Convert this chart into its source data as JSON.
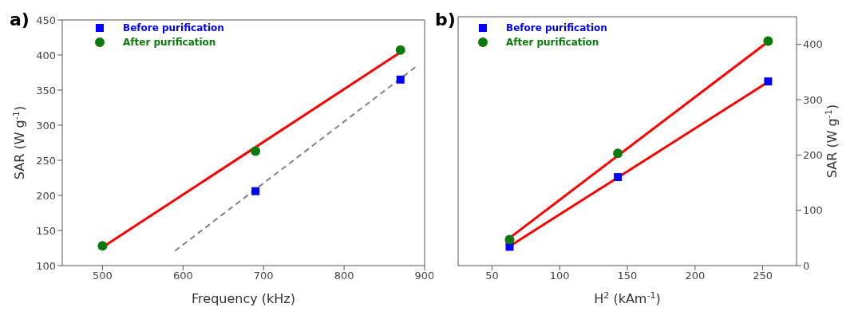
{
  "chart_data": [
    {
      "type": "scatter",
      "title": "a)",
      "xlabel": "Frequency (kHz)",
      "ylabel": "SAR (W g$^{-1}$)",
      "xlim": [
        450,
        900
      ],
      "xticks": [
        500,
        600,
        700,
        800,
        900
      ],
      "ylim": [
        100,
        450
      ],
      "yticks": [
        100,
        150,
        200,
        250,
        300,
        350,
        400,
        450
      ],
      "legend": "top left",
      "grid": false,
      "series": [
        {
          "name": "Before purification",
          "color": "#0000ff",
          "marker": "square",
          "x": [
            690,
            870
          ],
          "values": [
            206,
            365
          ]
        },
        {
          "name": "After purification",
          "color": "#0a7a0a",
          "marker": "circle",
          "x": [
            500,
            690,
            870
          ],
          "values": [
            128,
            263,
            407
          ]
        },
        {
          "type": "line",
          "color": "#ff0000",
          "marker": "none",
          "line_style": "solid",
          "x": [
            500,
            870
          ],
          "values": [
            126,
            404
          ]
        },
        {
          "type": "line",
          "color": "#808080",
          "marker": "none",
          "line_style": "dashed",
          "x": [
            590,
            890
          ],
          "values": [
            121,
            384
          ]
        }
      ]
    },
    {
      "type": "scatter",
      "title": "b)",
      "xlabel": "H$^{2}$ (kAm$^{-1}$)",
      "y2label": "SAR (W g$^{-1}$)",
      "xlim": [
        25,
        275
      ],
      "xticks": [
        50,
        100,
        150,
        200,
        250
      ],
      "y2lim": [
        0,
        450
      ],
      "y2ticks": [
        0,
        100,
        200,
        300,
        400
      ],
      "legend": "top left",
      "grid": false,
      "series": [
        {
          "name": "Before purification",
          "color": "#0000ff",
          "marker": "square",
          "axis": "y2",
          "x": [
            63,
            143,
            254
          ],
          "values": [
            34,
            160,
            333
          ]
        },
        {
          "name": "After purification",
          "color": "#0a7a0a",
          "marker": "circle",
          "axis": "y2",
          "x": [
            63,
            143,
            254
          ],
          "values": [
            47,
            203,
            406
          ]
        },
        {
          "type": "line",
          "color": "#ff0000",
          "marker": "none",
          "line_style": "solid",
          "axis": "y2",
          "x": [
            63,
            254
          ],
          "values": [
            35,
            332
          ]
        },
        {
          "type": "line",
          "color": "#ff0000",
          "marker": "none",
          "line_style": "solid",
          "axis": "y2",
          "x": [
            63,
            254
          ],
          "values": [
            50,
            405
          ]
        }
      ]
    }
  ]
}
